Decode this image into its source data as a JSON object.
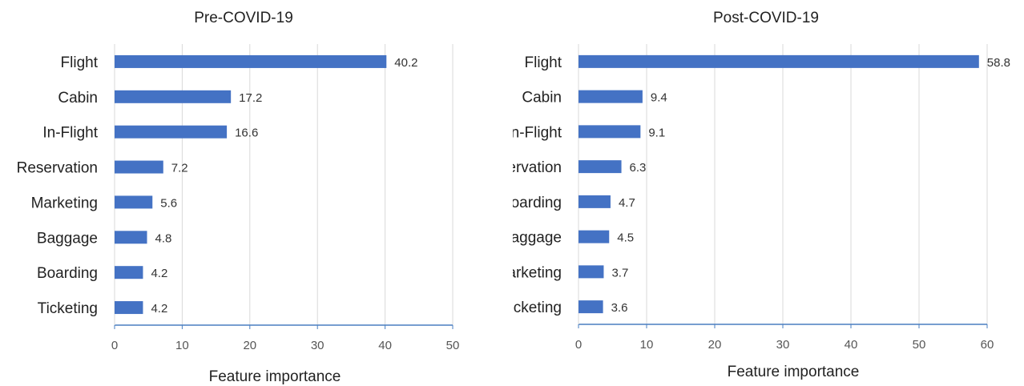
{
  "colors": {
    "bar": "#4472C4",
    "axis": "#4A7FC1",
    "grid": "#D9D9D9"
  },
  "chart_data": [
    {
      "type": "bar",
      "orientation": "horizontal",
      "title": "Pre-COVID-19",
      "xlabel": "Feature importance",
      "ylabel": "",
      "categories": [
        "Flight",
        "Cabin",
        "In-Flight",
        "Reservation",
        "Marketing",
        "Baggage",
        "Boarding",
        "Ticketing"
      ],
      "values": [
        40.2,
        17.2,
        16.6,
        7.2,
        5.6,
        4.8,
        4.2,
        4.2
      ],
      "value_labels": [
        "40.2",
        "17.2",
        "16.6",
        "7.2",
        "5.6",
        "4.8",
        "4.2",
        "4.2"
      ],
      "xlim": [
        0,
        50
      ],
      "xticks": [
        0,
        10,
        20,
        30,
        40,
        50
      ],
      "xtick_labels": [
        "0",
        "10",
        "20",
        "30",
        "40",
        "50"
      ],
      "grid": "vertical"
    },
    {
      "type": "bar",
      "orientation": "horizontal",
      "title": "Post-COVID-19",
      "xlabel": "Feature importance",
      "ylabel": "",
      "categories": [
        "Flight",
        "Cabin",
        "In-Flight",
        "Reservation",
        "Boarding",
        "Baggage",
        "Marketing",
        "Ticketing"
      ],
      "values": [
        58.8,
        9.4,
        9.1,
        6.3,
        4.7,
        4.5,
        3.7,
        3.6
      ],
      "value_labels": [
        "58.8",
        "9.4",
        "9.1",
        "6.3",
        "4.7",
        "4.5",
        "3.7",
        "3.6"
      ],
      "xlim": [
        0,
        60
      ],
      "xticks": [
        0,
        10,
        20,
        30,
        40,
        50,
        60
      ],
      "xtick_labels": [
        "0",
        "10",
        "20",
        "30",
        "40",
        "50",
        "60"
      ],
      "grid": "vertical"
    }
  ]
}
